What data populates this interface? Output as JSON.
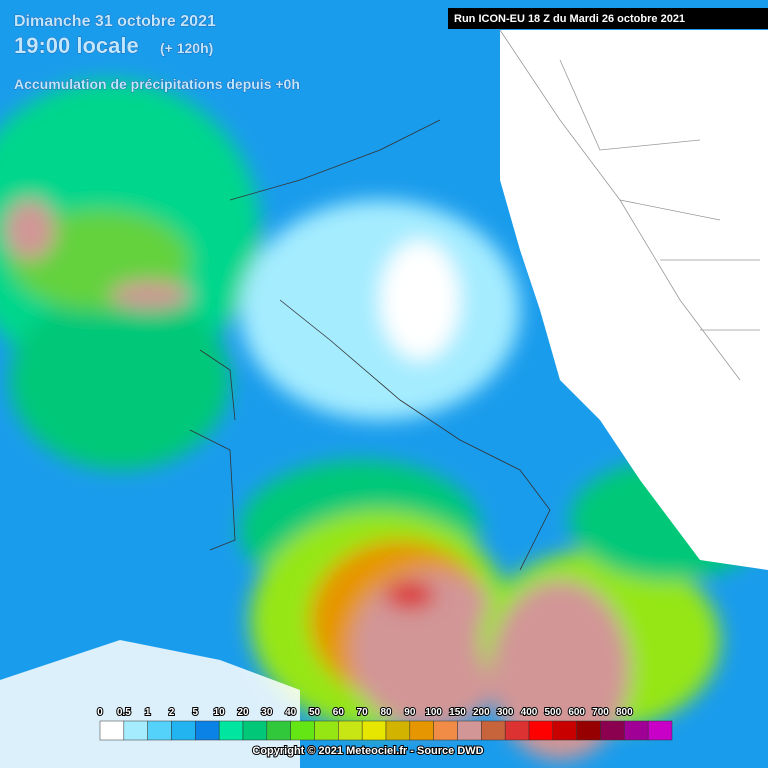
{
  "header": {
    "date": "Dimanche 31 octobre 2021",
    "time": "19:00 locale",
    "lead": "(+ 120h)",
    "field": "Accumulation de précipitations depuis +0h",
    "run": "Run ICON-EU 18 Z du Mardi 26 octobre 2021"
  },
  "legend": {
    "items": [
      {
        "label": "0",
        "color": "#ffffff"
      },
      {
        "label": "0.5",
        "color": "#a5ecff"
      },
      {
        "label": "1",
        "color": "#55d2fa"
      },
      {
        "label": "2",
        "color": "#22b4f0"
      },
      {
        "label": "5",
        "color": "#0a82e6"
      },
      {
        "label": "10",
        "color": "#00e6a0"
      },
      {
        "label": "20",
        "color": "#00c878"
      },
      {
        "label": "30",
        "color": "#32c83c"
      },
      {
        "label": "40",
        "color": "#64e614"
      },
      {
        "label": "50",
        "color": "#96e614"
      },
      {
        "label": "60",
        "color": "#c8e614"
      },
      {
        "label": "70",
        "color": "#e6e600"
      },
      {
        "label": "80",
        "color": "#d2b400"
      },
      {
        "label": "90",
        "color": "#e69600"
      },
      {
        "label": "100",
        "color": "#f08c46"
      },
      {
        "label": "150",
        "color": "#d29696"
      },
      {
        "label": "200",
        "color": "#c8643c"
      },
      {
        "label": "300",
        "color": "#dc3232"
      },
      {
        "label": "400",
        "color": "#ff0000"
      },
      {
        "label": "500",
        "color": "#c80000"
      },
      {
        "label": "600",
        "color": "#960000"
      },
      {
        "label": "700",
        "color": "#8c0050"
      },
      {
        "label": "800",
        "color": "#a00096"
      }
    ],
    "end_color": "#c800c8"
  },
  "footer": {
    "copyright": "Copyright © 2021 Meteociel.fr - Source DWD"
  }
}
